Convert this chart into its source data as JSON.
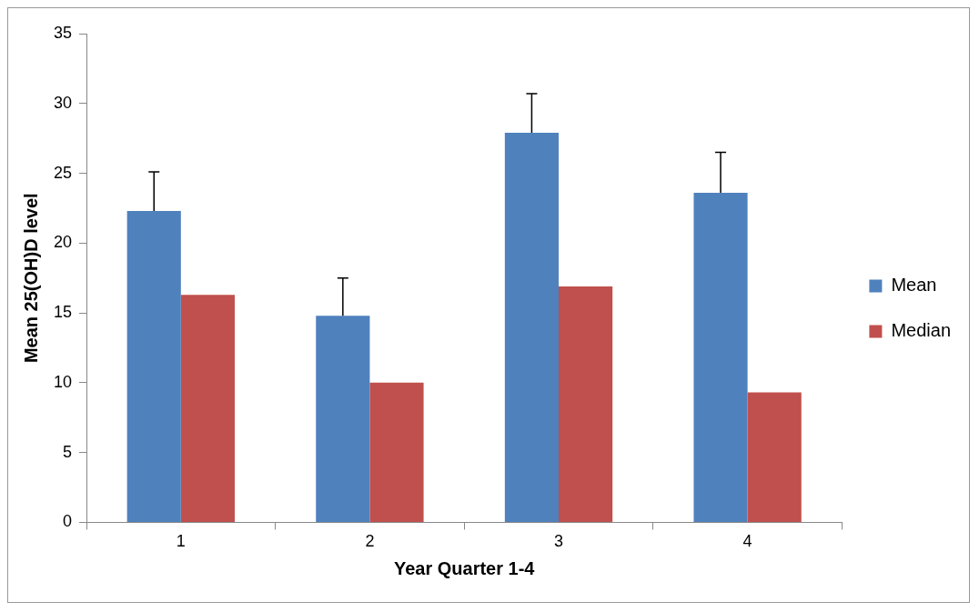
{
  "chart_data": {
    "type": "bar",
    "xlabel": "Year Quarter 1-4",
    "ylabel": "Mean 25(OH)D level",
    "categories": [
      "1",
      "2",
      "3",
      "4"
    ],
    "series": [
      {
        "name": "Mean",
        "color": "#4f81bd",
        "values": [
          22.3,
          14.8,
          27.9,
          23.6
        ],
        "errors": [
          [
            22.3,
            25.1
          ],
          [
            14.8,
            17.5
          ],
          [
            27.9,
            30.7
          ],
          [
            23.6,
            26.5
          ]
        ]
      },
      {
        "name": "Median",
        "color": "#c0504d",
        "values": [
          16.3,
          10.0,
          16.9,
          9.3
        ]
      }
    ],
    "ylim": [
      0,
      35
    ],
    "yticks": [
      0,
      5,
      10,
      15,
      20,
      25,
      30,
      35
    ],
    "grid": false,
    "legend": "right"
  }
}
